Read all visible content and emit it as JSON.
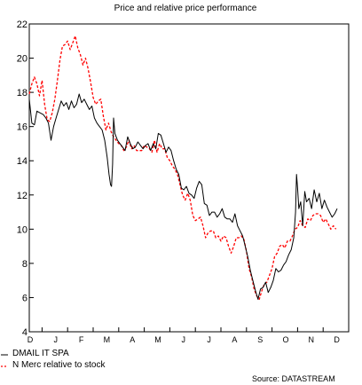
{
  "chart_data": {
    "type": "line",
    "title": "Price and relative price performance",
    "source": "Source: DATASTREAM",
    "ylim": [
      4,
      22
    ],
    "yticks": [
      "4",
      "6",
      "8",
      "10",
      "12",
      "14",
      "16",
      "18",
      "20",
      "22"
    ],
    "months": [
      "D",
      "J",
      "F",
      "M",
      "A",
      "M",
      "J",
      "J",
      "A",
      "S",
      "O",
      "N",
      "D"
    ],
    "series": [
      {
        "name": "DMAIL IT SPA",
        "color": "#000000",
        "style": "solid",
        "points": [
          [
            0.0,
            17.6
          ],
          [
            0.1,
            16.2
          ],
          [
            0.2,
            16.1
          ],
          [
            0.3,
            16.9
          ],
          [
            0.42,
            16.8
          ],
          [
            0.55,
            16.7
          ],
          [
            0.65,
            16.5
          ],
          [
            0.75,
            16.2
          ],
          [
            0.85,
            15.2
          ],
          [
            0.95,
            16.0
          ],
          [
            1.05,
            16.5
          ],
          [
            1.15,
            17.0
          ],
          [
            1.25,
            17.5
          ],
          [
            1.35,
            17.2
          ],
          [
            1.45,
            17.4
          ],
          [
            1.55,
            17.0
          ],
          [
            1.65,
            17.5
          ],
          [
            1.75,
            17.1
          ],
          [
            1.85,
            17.3
          ],
          [
            1.95,
            17.9
          ],
          [
            2.05,
            17.4
          ],
          [
            2.15,
            17.6
          ],
          [
            2.25,
            17.3
          ],
          [
            2.35,
            17.0
          ],
          [
            2.45,
            17.2
          ],
          [
            2.55,
            16.5
          ],
          [
            2.65,
            16.2
          ],
          [
            2.75,
            16.0
          ],
          [
            2.85,
            15.8
          ],
          [
            2.95,
            15.2
          ],
          [
            3.05,
            14.2
          ],
          [
            3.12,
            13.2
          ],
          [
            3.18,
            12.6
          ],
          [
            3.22,
            12.5
          ],
          [
            3.26,
            13.8
          ],
          [
            3.3,
            16.5
          ],
          [
            3.35,
            15.6
          ],
          [
            3.45,
            15.2
          ],
          [
            3.55,
            15.0
          ],
          [
            3.65,
            14.8
          ],
          [
            3.75,
            14.6
          ],
          [
            3.85,
            15.4
          ],
          [
            3.95,
            15.0
          ],
          [
            4.05,
            14.7
          ],
          [
            4.15,
            14.8
          ],
          [
            4.25,
            15.1
          ],
          [
            4.35,
            14.9
          ],
          [
            4.45,
            14.7
          ],
          [
            4.55,
            14.9
          ],
          [
            4.65,
            15.0
          ],
          [
            4.75,
            14.6
          ],
          [
            4.85,
            15.0
          ],
          [
            4.95,
            14.7
          ],
          [
            5.05,
            15.6
          ],
          [
            5.15,
            15.5
          ],
          [
            5.25,
            15.0
          ],
          [
            5.35,
            14.5
          ],
          [
            5.45,
            14.8
          ],
          [
            5.55,
            14.6
          ],
          [
            5.65,
            14.0
          ],
          [
            5.75,
            13.5
          ],
          [
            5.85,
            13.2
          ],
          [
            5.95,
            12.4
          ],
          [
            6.05,
            12.3
          ],
          [
            6.15,
            12.5
          ],
          [
            6.25,
            12.1
          ],
          [
            6.35,
            12.0
          ],
          [
            6.45,
            11.8
          ],
          [
            6.55,
            12.4
          ],
          [
            6.65,
            12.8
          ],
          [
            6.75,
            12.6
          ],
          [
            6.85,
            11.5
          ],
          [
            6.95,
            11.4
          ],
          [
            7.05,
            10.8
          ],
          [
            7.15,
            11.0
          ],
          [
            7.25,
            11.0
          ],
          [
            7.35,
            10.7
          ],
          [
            7.45,
            10.9
          ],
          [
            7.55,
            11.2
          ],
          [
            7.65,
            10.7
          ],
          [
            7.75,
            10.6
          ],
          [
            7.85,
            10.6
          ],
          [
            7.95,
            10.4
          ],
          [
            8.05,
            10.9
          ],
          [
            8.15,
            10.2
          ],
          [
            8.25,
            9.9
          ],
          [
            8.35,
            9.6
          ],
          [
            8.45,
            9.0
          ],
          [
            8.55,
            8.4
          ],
          [
            8.65,
            7.6
          ],
          [
            8.75,
            7.0
          ],
          [
            8.85,
            6.4
          ],
          [
            8.95,
            5.9
          ],
          [
            9.05,
            6.5
          ],
          [
            9.15,
            6.6
          ],
          [
            9.25,
            6.9
          ],
          [
            9.35,
            6.3
          ],
          [
            9.45,
            6.6
          ],
          [
            9.55,
            7.0
          ],
          [
            9.65,
            7.7
          ],
          [
            9.75,
            7.5
          ],
          [
            9.85,
            7.6
          ],
          [
            9.95,
            7.9
          ],
          [
            10.05,
            8.1
          ],
          [
            10.15,
            8.5
          ],
          [
            10.25,
            8.8
          ],
          [
            10.35,
            9.5
          ],
          [
            10.42,
            11.0
          ],
          [
            10.46,
            13.2
          ],
          [
            10.5,
            12.4
          ],
          [
            10.55,
            11.2
          ],
          [
            10.62,
            11.6
          ],
          [
            10.7,
            10.2
          ],
          [
            10.78,
            12.2
          ],
          [
            10.85,
            11.6
          ],
          [
            10.95,
            11.8
          ],
          [
            11.05,
            11.2
          ],
          [
            11.15,
            12.3
          ],
          [
            11.25,
            11.6
          ],
          [
            11.35,
            12.1
          ],
          [
            11.45,
            11.2
          ],
          [
            11.55,
            11.7
          ],
          [
            11.65,
            11.3
          ],
          [
            11.75,
            11.0
          ],
          [
            11.85,
            10.7
          ],
          [
            11.95,
            10.9
          ],
          [
            12.05,
            11.2
          ]
        ]
      },
      {
        "name": "N Merc relative to stock",
        "color": "#ff0000",
        "style": "dashed",
        "points": [
          [
            0.0,
            17.9
          ],
          [
            0.1,
            18.5
          ],
          [
            0.2,
            18.9
          ],
          [
            0.3,
            18.5
          ],
          [
            0.4,
            17.8
          ],
          [
            0.5,
            18.7
          ],
          [
            0.6,
            17.3
          ],
          [
            0.7,
            16.4
          ],
          [
            0.8,
            16.3
          ],
          [
            0.9,
            16.8
          ],
          [
            1.0,
            17.6
          ],
          [
            1.1,
            18.7
          ],
          [
            1.2,
            19.9
          ],
          [
            1.3,
            20.7
          ],
          [
            1.4,
            20.8
          ],
          [
            1.5,
            21.0
          ],
          [
            1.6,
            20.5
          ],
          [
            1.7,
            20.9
          ],
          [
            1.8,
            21.3
          ],
          [
            1.9,
            20.6
          ],
          [
            2.0,
            20.2
          ],
          [
            2.1,
            19.6
          ],
          [
            2.2,
            20.0
          ],
          [
            2.3,
            19.4
          ],
          [
            2.4,
            18.6
          ],
          [
            2.5,
            17.7
          ],
          [
            2.6,
            17.3
          ],
          [
            2.7,
            17.5
          ],
          [
            2.8,
            17.6
          ],
          [
            2.9,
            16.6
          ],
          [
            3.0,
            15.8
          ],
          [
            3.1,
            16.2
          ],
          [
            3.2,
            15.7
          ],
          [
            3.3,
            15.4
          ],
          [
            3.4,
            15.2
          ],
          [
            3.5,
            15.0
          ],
          [
            3.6,
            14.9
          ],
          [
            3.7,
            14.6
          ],
          [
            3.8,
            14.8
          ],
          [
            3.9,
            15.2
          ],
          [
            4.0,
            14.7
          ],
          [
            4.1,
            14.9
          ],
          [
            4.2,
            14.6
          ],
          [
            4.3,
            14.6
          ],
          [
            4.4,
            14.6
          ],
          [
            4.5,
            14.9
          ],
          [
            4.6,
            14.8
          ],
          [
            4.7,
            14.7
          ],
          [
            4.8,
            14.5
          ],
          [
            4.9,
            15.2
          ],
          [
            5.0,
            14.5
          ],
          [
            5.1,
            15.0
          ],
          [
            5.2,
            14.7
          ],
          [
            5.3,
            14.7
          ],
          [
            5.4,
            14.2
          ],
          [
            5.5,
            14.0
          ],
          [
            5.6,
            13.7
          ],
          [
            5.7,
            13.5
          ],
          [
            5.8,
            13.2
          ],
          [
            5.9,
            12.6
          ],
          [
            6.0,
            12.0
          ],
          [
            6.1,
            11.7
          ],
          [
            6.2,
            12.1
          ],
          [
            6.3,
            11.7
          ],
          [
            6.4,
            10.8
          ],
          [
            6.5,
            10.5
          ],
          [
            6.6,
            10.6
          ],
          [
            6.7,
            10.7
          ],
          [
            6.8,
            10.2
          ],
          [
            6.9,
            9.5
          ],
          [
            7.0,
            9.8
          ],
          [
            7.1,
            9.9
          ],
          [
            7.2,
            9.9
          ],
          [
            7.3,
            9.5
          ],
          [
            7.4,
            9.6
          ],
          [
            7.5,
            9.3
          ],
          [
            7.6,
            9.6
          ],
          [
            7.7,
            9.5
          ],
          [
            7.8,
            9.0
          ],
          [
            7.9,
            8.6
          ],
          [
            8.0,
            9.0
          ],
          [
            8.1,
            9.5
          ],
          [
            8.2,
            9.5
          ],
          [
            8.3,
            9.6
          ],
          [
            8.4,
            9.4
          ],
          [
            8.5,
            8.7
          ],
          [
            8.6,
            7.7
          ],
          [
            8.7,
            7.2
          ],
          [
            8.8,
            6.5
          ],
          [
            8.9,
            6.1
          ],
          [
            9.0,
            5.9
          ],
          [
            9.1,
            6.4
          ],
          [
            9.2,
            6.8
          ],
          [
            9.3,
            6.9
          ],
          [
            9.4,
            7.3
          ],
          [
            9.5,
            7.7
          ],
          [
            9.6,
            8.4
          ],
          [
            9.7,
            8.6
          ],
          [
            9.8,
            9.0
          ],
          [
            9.9,
            9.1
          ],
          [
            10.0,
            8.9
          ],
          [
            10.1,
            9.3
          ],
          [
            10.2,
            9.3
          ],
          [
            10.3,
            9.6
          ],
          [
            10.4,
            10.0
          ],
          [
            10.5,
            10.1
          ],
          [
            10.6,
            10.5
          ],
          [
            10.7,
            10.2
          ],
          [
            10.8,
            10.1
          ],
          [
            10.9,
            10.6
          ],
          [
            11.0,
            10.5
          ],
          [
            11.1,
            10.8
          ],
          [
            11.2,
            10.9
          ],
          [
            11.3,
            10.9
          ],
          [
            11.4,
            10.8
          ],
          [
            11.5,
            10.4
          ],
          [
            11.6,
            10.6
          ],
          [
            11.7,
            10.3
          ],
          [
            11.8,
            10.0
          ],
          [
            11.9,
            10.2
          ],
          [
            12.0,
            10.0
          ]
        ]
      }
    ],
    "legend_placement": "bottom-left",
    "grid": false
  }
}
